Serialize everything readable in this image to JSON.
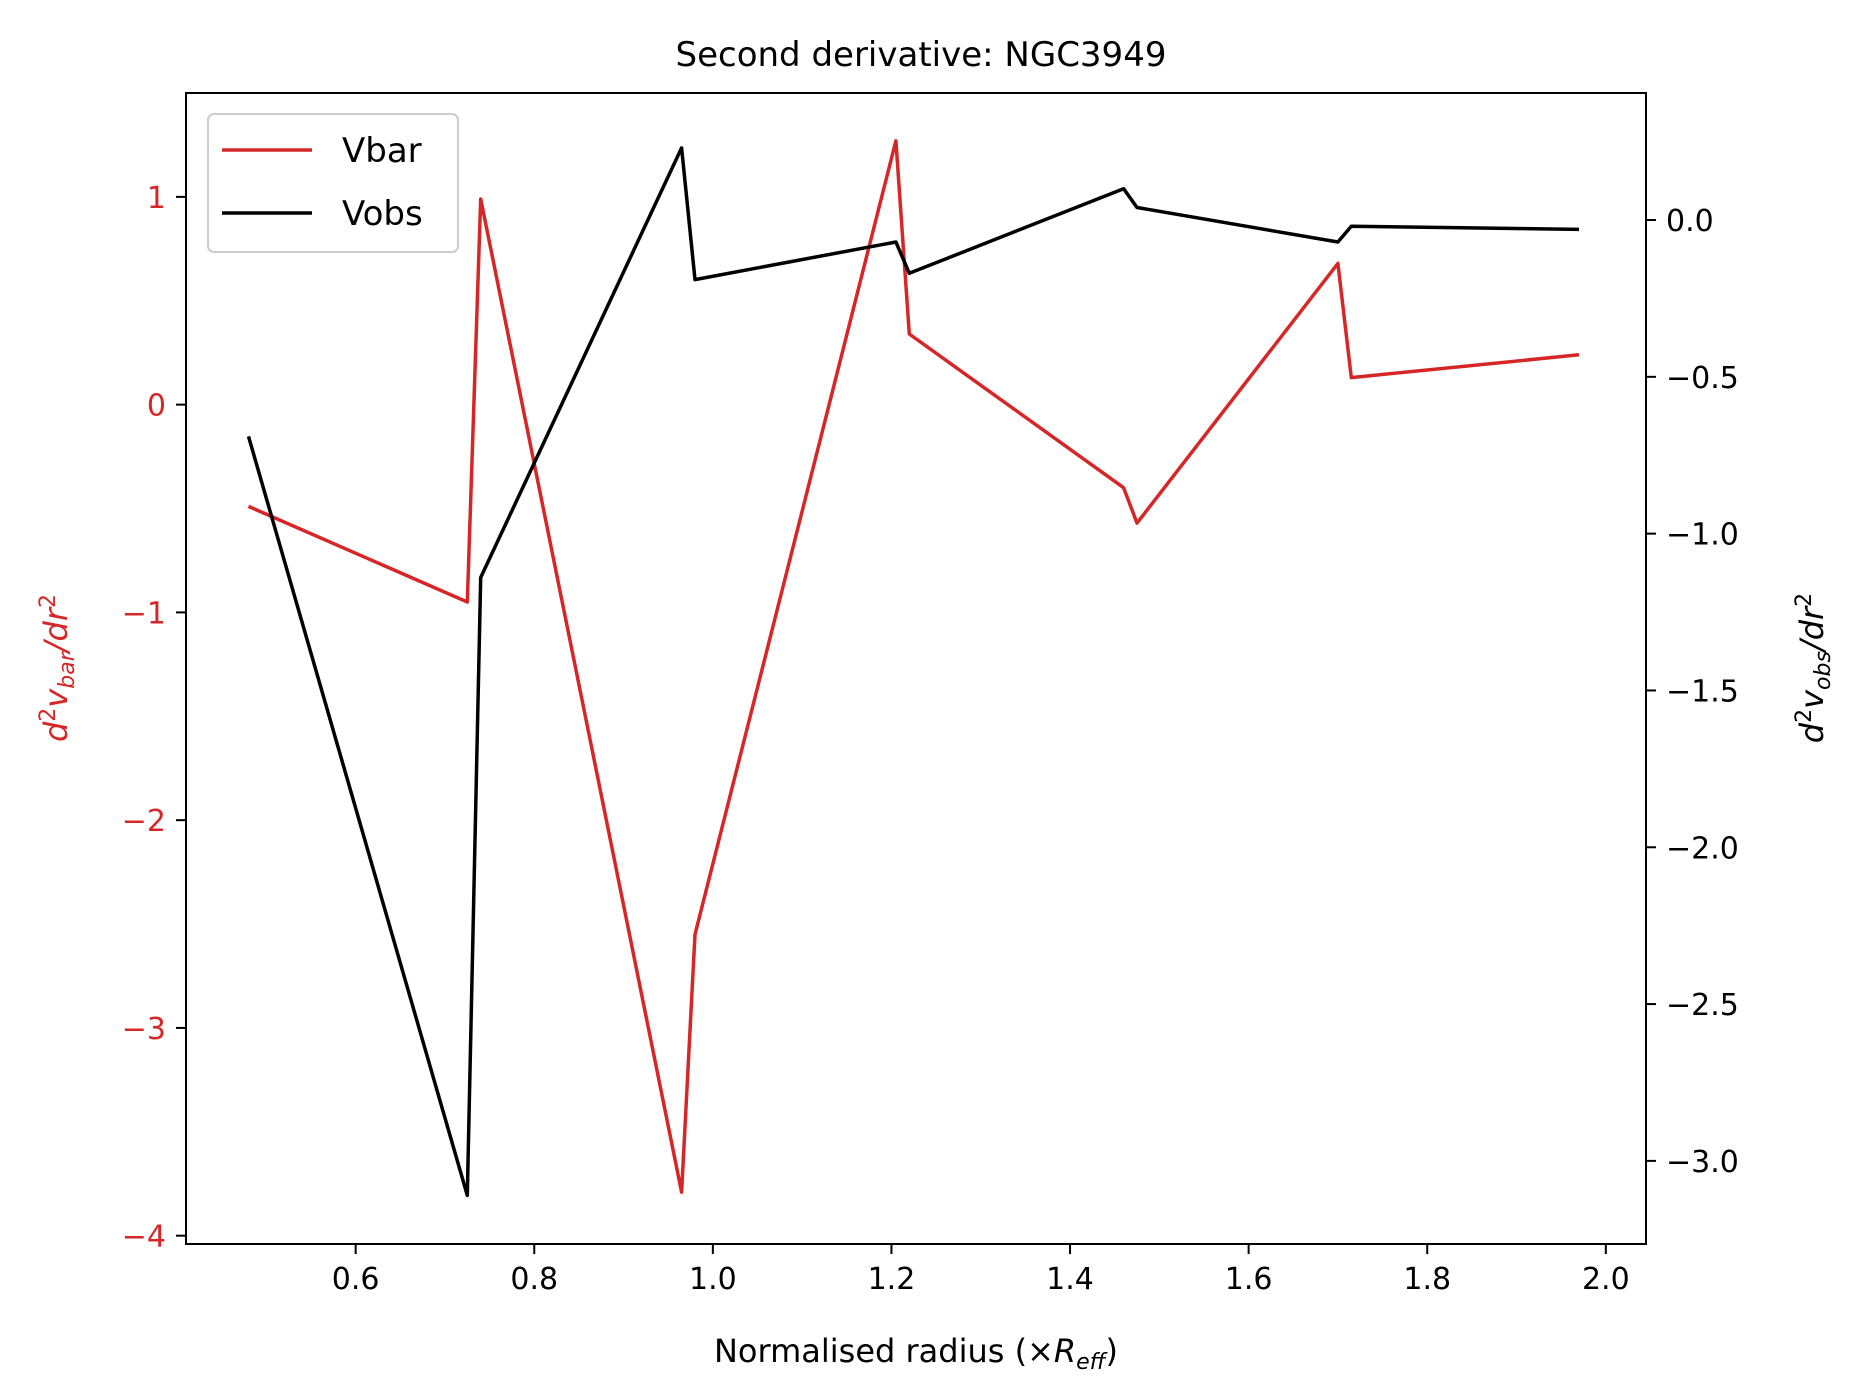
{
  "chart_data": {
    "type": "line",
    "title": "Second derivative: NGC3949",
    "xlabel": {
      "main": "Normalised radius (×",
      "var": "R",
      "sub": "eff",
      "close": ")"
    },
    "ylabel_left": {
      "d": "d",
      "sup": "2",
      "v": "v",
      "sub": "bar",
      "rest": "/dr",
      "sup2": "2"
    },
    "ylabel_right": {
      "d": "d",
      "sup": "2",
      "v": "v",
      "sub": "obs",
      "rest": "/dr",
      "sup2": "2"
    },
    "xlim": [
      0.41,
      2.045
    ],
    "ylim_left": [
      -4.04,
      1.5
    ],
    "ylim_right": [
      -3.265,
      0.405
    ],
    "xticks": [
      0.6,
      0.8,
      1.0,
      1.2,
      1.4,
      1.6,
      1.8,
      2.0
    ],
    "xtick_labels": [
      "0.6",
      "0.8",
      "1.0",
      "1.2",
      "1.4",
      "1.6",
      "1.8",
      "2.0"
    ],
    "yticks_left": [
      1,
      0,
      -1,
      -2,
      -3,
      -4
    ],
    "ytick_labels_left": [
      "1",
      "0",
      "−1",
      "−2",
      "−3",
      "−4"
    ],
    "yticks_right": [
      0.0,
      -0.5,
      -1.0,
      -1.5,
      -2.0,
      -2.5,
      -3.0
    ],
    "ytick_labels_right": [
      "0.0",
      "−0.5",
      "−1.0",
      "−1.5",
      "−2.0",
      "−2.5",
      "−3.0"
    ],
    "legend_position": "top-left",
    "grid": false,
    "colors": {
      "vbar": "#d62728",
      "vobs": "#000000",
      "left_axis": "#d62728",
      "right_axis": "#000000"
    },
    "series": [
      {
        "name": "Vbar",
        "axis": "left",
        "x": [
          0.48,
          0.725,
          0.74,
          0.965,
          0.98,
          1.205,
          1.22,
          1.46,
          1.475,
          1.7,
          1.715,
          1.97
        ],
        "y": [
          -0.49,
          -0.95,
          0.99,
          -3.79,
          -2.55,
          1.27,
          0.34,
          -0.4,
          -0.57,
          0.68,
          0.13,
          0.24
        ]
      },
      {
        "name": "Vobs",
        "axis": "right",
        "x": [
          0.48,
          0.725,
          0.74,
          0.965,
          0.98,
          1.205,
          1.22,
          1.46,
          1.475,
          1.7,
          1.715,
          1.97
        ],
        "y": [
          -0.69,
          -3.11,
          -1.14,
          0.23,
          -0.19,
          -0.07,
          -0.17,
          0.1,
          0.04,
          -0.07,
          -0.02,
          -0.03
        ]
      }
    ]
  }
}
